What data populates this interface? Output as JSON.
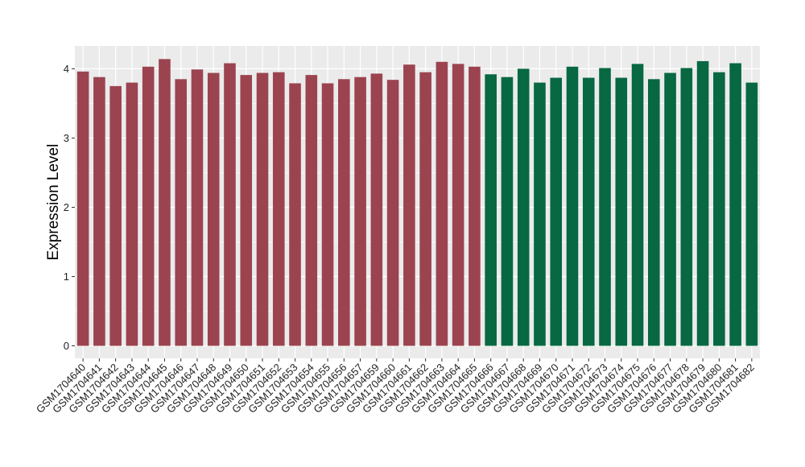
{
  "chart_data": {
    "type": "bar",
    "ylabel": "Expression Level",
    "xlabel": "",
    "title": "",
    "ylim": [
      -0.18,
      4.33
    ],
    "yticks": [
      0,
      1,
      2,
      3,
      4
    ],
    "grid": true,
    "legend": "none",
    "colors": {
      "group1": "#9b4450",
      "group2": "#076842",
      "panel_bg": "#ebebeb",
      "grid": "#ffffff"
    },
    "categories": [
      "GSM1704640",
      "GSM1704641",
      "GSM1704642",
      "GSM1704643",
      "GSM1704644",
      "GSM1704645",
      "GSM1704646",
      "GSM1704647",
      "GSM1704648",
      "GSM1704649",
      "GSM1704650",
      "GSM1704651",
      "GSM1704652",
      "GSM1704653",
      "GSM1704654",
      "GSM1704655",
      "GSM1704656",
      "GSM1704657",
      "GSM1704659",
      "GSM1704660",
      "GSM1704661",
      "GSM1704662",
      "GSM1704663",
      "GSM1704664",
      "GSM1704665",
      "GSM1704666",
      "GSM1704667",
      "GSM1704668",
      "GSM1704669",
      "GSM1704670",
      "GSM1704671",
      "GSM1704672",
      "GSM1704673",
      "GSM1704674",
      "GSM1704675",
      "GSM1704676",
      "GSM1704677",
      "GSM1704678",
      "GSM1704679",
      "GSM1704680",
      "GSM1704681",
      "GSM1704682"
    ],
    "values": [
      3.96,
      3.88,
      3.75,
      3.8,
      4.03,
      4.14,
      3.85,
      3.99,
      3.94,
      4.08,
      3.91,
      3.94,
      3.95,
      3.79,
      3.91,
      3.79,
      3.85,
      3.88,
      3.93,
      3.84,
      4.06,
      3.95,
      4.1,
      4.07,
      4.03,
      3.92,
      3.88,
      4.0,
      3.8,
      3.87,
      4.03,
      3.87,
      4.01,
      3.87,
      4.07,
      3.85,
      3.94,
      4.01,
      4.11,
      3.95,
      4.08,
      3.8
    ],
    "groups": [
      1,
      1,
      1,
      1,
      1,
      1,
      1,
      1,
      1,
      1,
      1,
      1,
      1,
      1,
      1,
      1,
      1,
      1,
      1,
      1,
      1,
      1,
      1,
      1,
      1,
      2,
      2,
      2,
      2,
      2,
      2,
      2,
      2,
      2,
      2,
      2,
      2,
      2,
      2,
      2,
      2,
      2
    ]
  }
}
